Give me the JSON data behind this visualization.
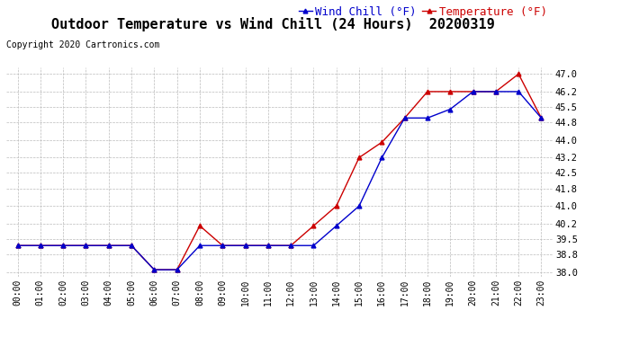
{
  "title": "Outdoor Temperature vs Wind Chill (24 Hours)  20200319",
  "copyright": "Copyright 2020 Cartronics.com",
  "legend_wind_chill": "Wind Chill (°F)",
  "legend_temperature": "Temperature (°F)",
  "x_labels": [
    "00:00",
    "01:00",
    "02:00",
    "03:00",
    "04:00",
    "05:00",
    "06:00",
    "07:00",
    "08:00",
    "09:00",
    "10:00",
    "11:00",
    "12:00",
    "13:00",
    "14:00",
    "15:00",
    "16:00",
    "17:00",
    "18:00",
    "19:00",
    "20:00",
    "21:00",
    "22:00",
    "23:00"
  ],
  "temperature": [
    39.2,
    39.2,
    39.2,
    39.2,
    39.2,
    39.2,
    38.1,
    38.1,
    40.1,
    39.2,
    39.2,
    39.2,
    39.2,
    40.1,
    41.0,
    43.2,
    43.9,
    45.0,
    46.2,
    46.2,
    46.2,
    46.2,
    47.0,
    45.0
  ],
  "wind_chill": [
    39.2,
    39.2,
    39.2,
    39.2,
    39.2,
    39.2,
    38.1,
    38.1,
    39.2,
    39.2,
    39.2,
    39.2,
    39.2,
    39.2,
    40.1,
    41.0,
    43.2,
    45.0,
    45.0,
    45.4,
    46.2,
    46.2,
    46.2,
    45.0
  ],
  "ylim": [
    37.8,
    47.3
  ],
  "yticks": [
    38.0,
    38.8,
    39.5,
    40.2,
    41.0,
    41.8,
    42.5,
    43.2,
    44.0,
    44.8,
    45.5,
    46.2,
    47.0
  ],
  "temp_color": "#cc0000",
  "wind_chill_color": "#0000cc",
  "bg_color": "#ffffff",
  "grid_color": "#bbbbbb",
  "title_fontsize": 11,
  "copyright_fontsize": 7,
  "legend_fontsize": 9
}
